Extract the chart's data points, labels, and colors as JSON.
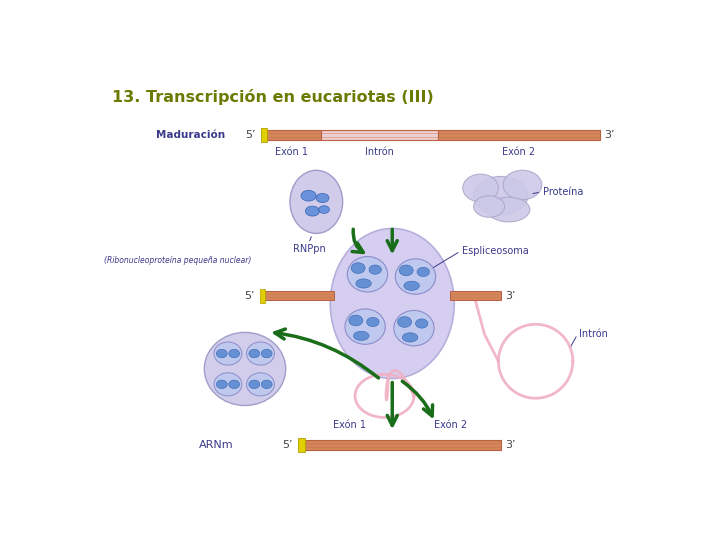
{
  "title": "13. Transcripción en eucariotas (III)",
  "title_color": "#6b7a00",
  "title_fontsize": 11.5,
  "bg_color": "#ffffff",
  "rna_bar": {
    "exon_color": "#d4855a",
    "intron_color": "#eecece",
    "cap_color": "#e0d000",
    "border_color": "#b86040",
    "stripe_color": "#c07050"
  },
  "arrow_color": "#1a6e1a",
  "text_color": "#3a3a8a",
  "annot_color": "#3a3a8a",
  "ellipse_fill": "#ccc8e8",
  "ellipse_edge": "#9898c8",
  "spl_fill": "#d0c8ee",
  "spl_edge": "#b0a8d8",
  "inner_fill": "#bec8ee",
  "inner_edge": "#8888c8",
  "snrnp_inner": "#5588d0",
  "cloud_fill": "#ccc8e8",
  "cloud_edge": "#aaa8cc",
  "lariat_color": "#f0b0c4",
  "labels": {
    "maduracion": "Maduración",
    "5prime": "5’",
    "3prime": "3’",
    "exon1_top": "Exón 1",
    "intron_top": "Intrón",
    "exon2_top": "Exón 2",
    "rnppn": "RNPpn",
    "ribonucleo": "(Ribonucleoproteína pequeña nuclear)",
    "proteina": "Proteína",
    "espliceosoma": "Espliceosoma",
    "exon1_bot": "Exón 1",
    "exon2_bot": "Exón 2",
    "arnm": "ARNm",
    "intron_label": "Intrón"
  }
}
